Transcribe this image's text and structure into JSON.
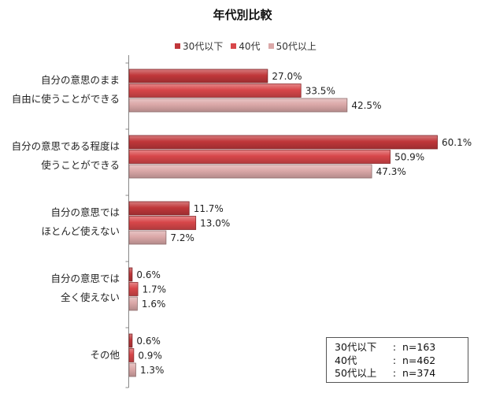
{
  "chart_data": {
    "type": "bar",
    "orientation": "horizontal",
    "title": "年代別比較",
    "categories": [
      [
        "自分の意思のまま",
        "自由に使うことができる"
      ],
      [
        "自分の意思である程度は",
        "使うことができる"
      ],
      [
        "自分の意思では",
        "ほとんど使えない"
      ],
      [
        "自分の意思では",
        "全く使えない"
      ],
      [
        "その他"
      ]
    ],
    "series": [
      {
        "name": "30代以下",
        "color": "#c0373a",
        "values": [
          27.0,
          60.1,
          11.7,
          0.6,
          0.6
        ]
      },
      {
        "name": "40代",
        "color": "#d8474a",
        "values": [
          33.5,
          50.9,
          13.0,
          1.7,
          0.9
        ]
      },
      {
        "name": "50代以上",
        "color": "#dba8a8",
        "values": [
          42.5,
          47.3,
          7.2,
          1.6,
          1.3
        ]
      }
    ],
    "value_suffix": "%",
    "xlim": [
      0,
      70
    ],
    "legend_position": "top",
    "grid": false
  },
  "sample_sizes": [
    {
      "group": "30代以下",
      "value": "n=163"
    },
    {
      "group": "40代",
      "value": "n=462"
    },
    {
      "group": "50代以上",
      "value": "n=374"
    }
  ],
  "sample_separator": ":"
}
